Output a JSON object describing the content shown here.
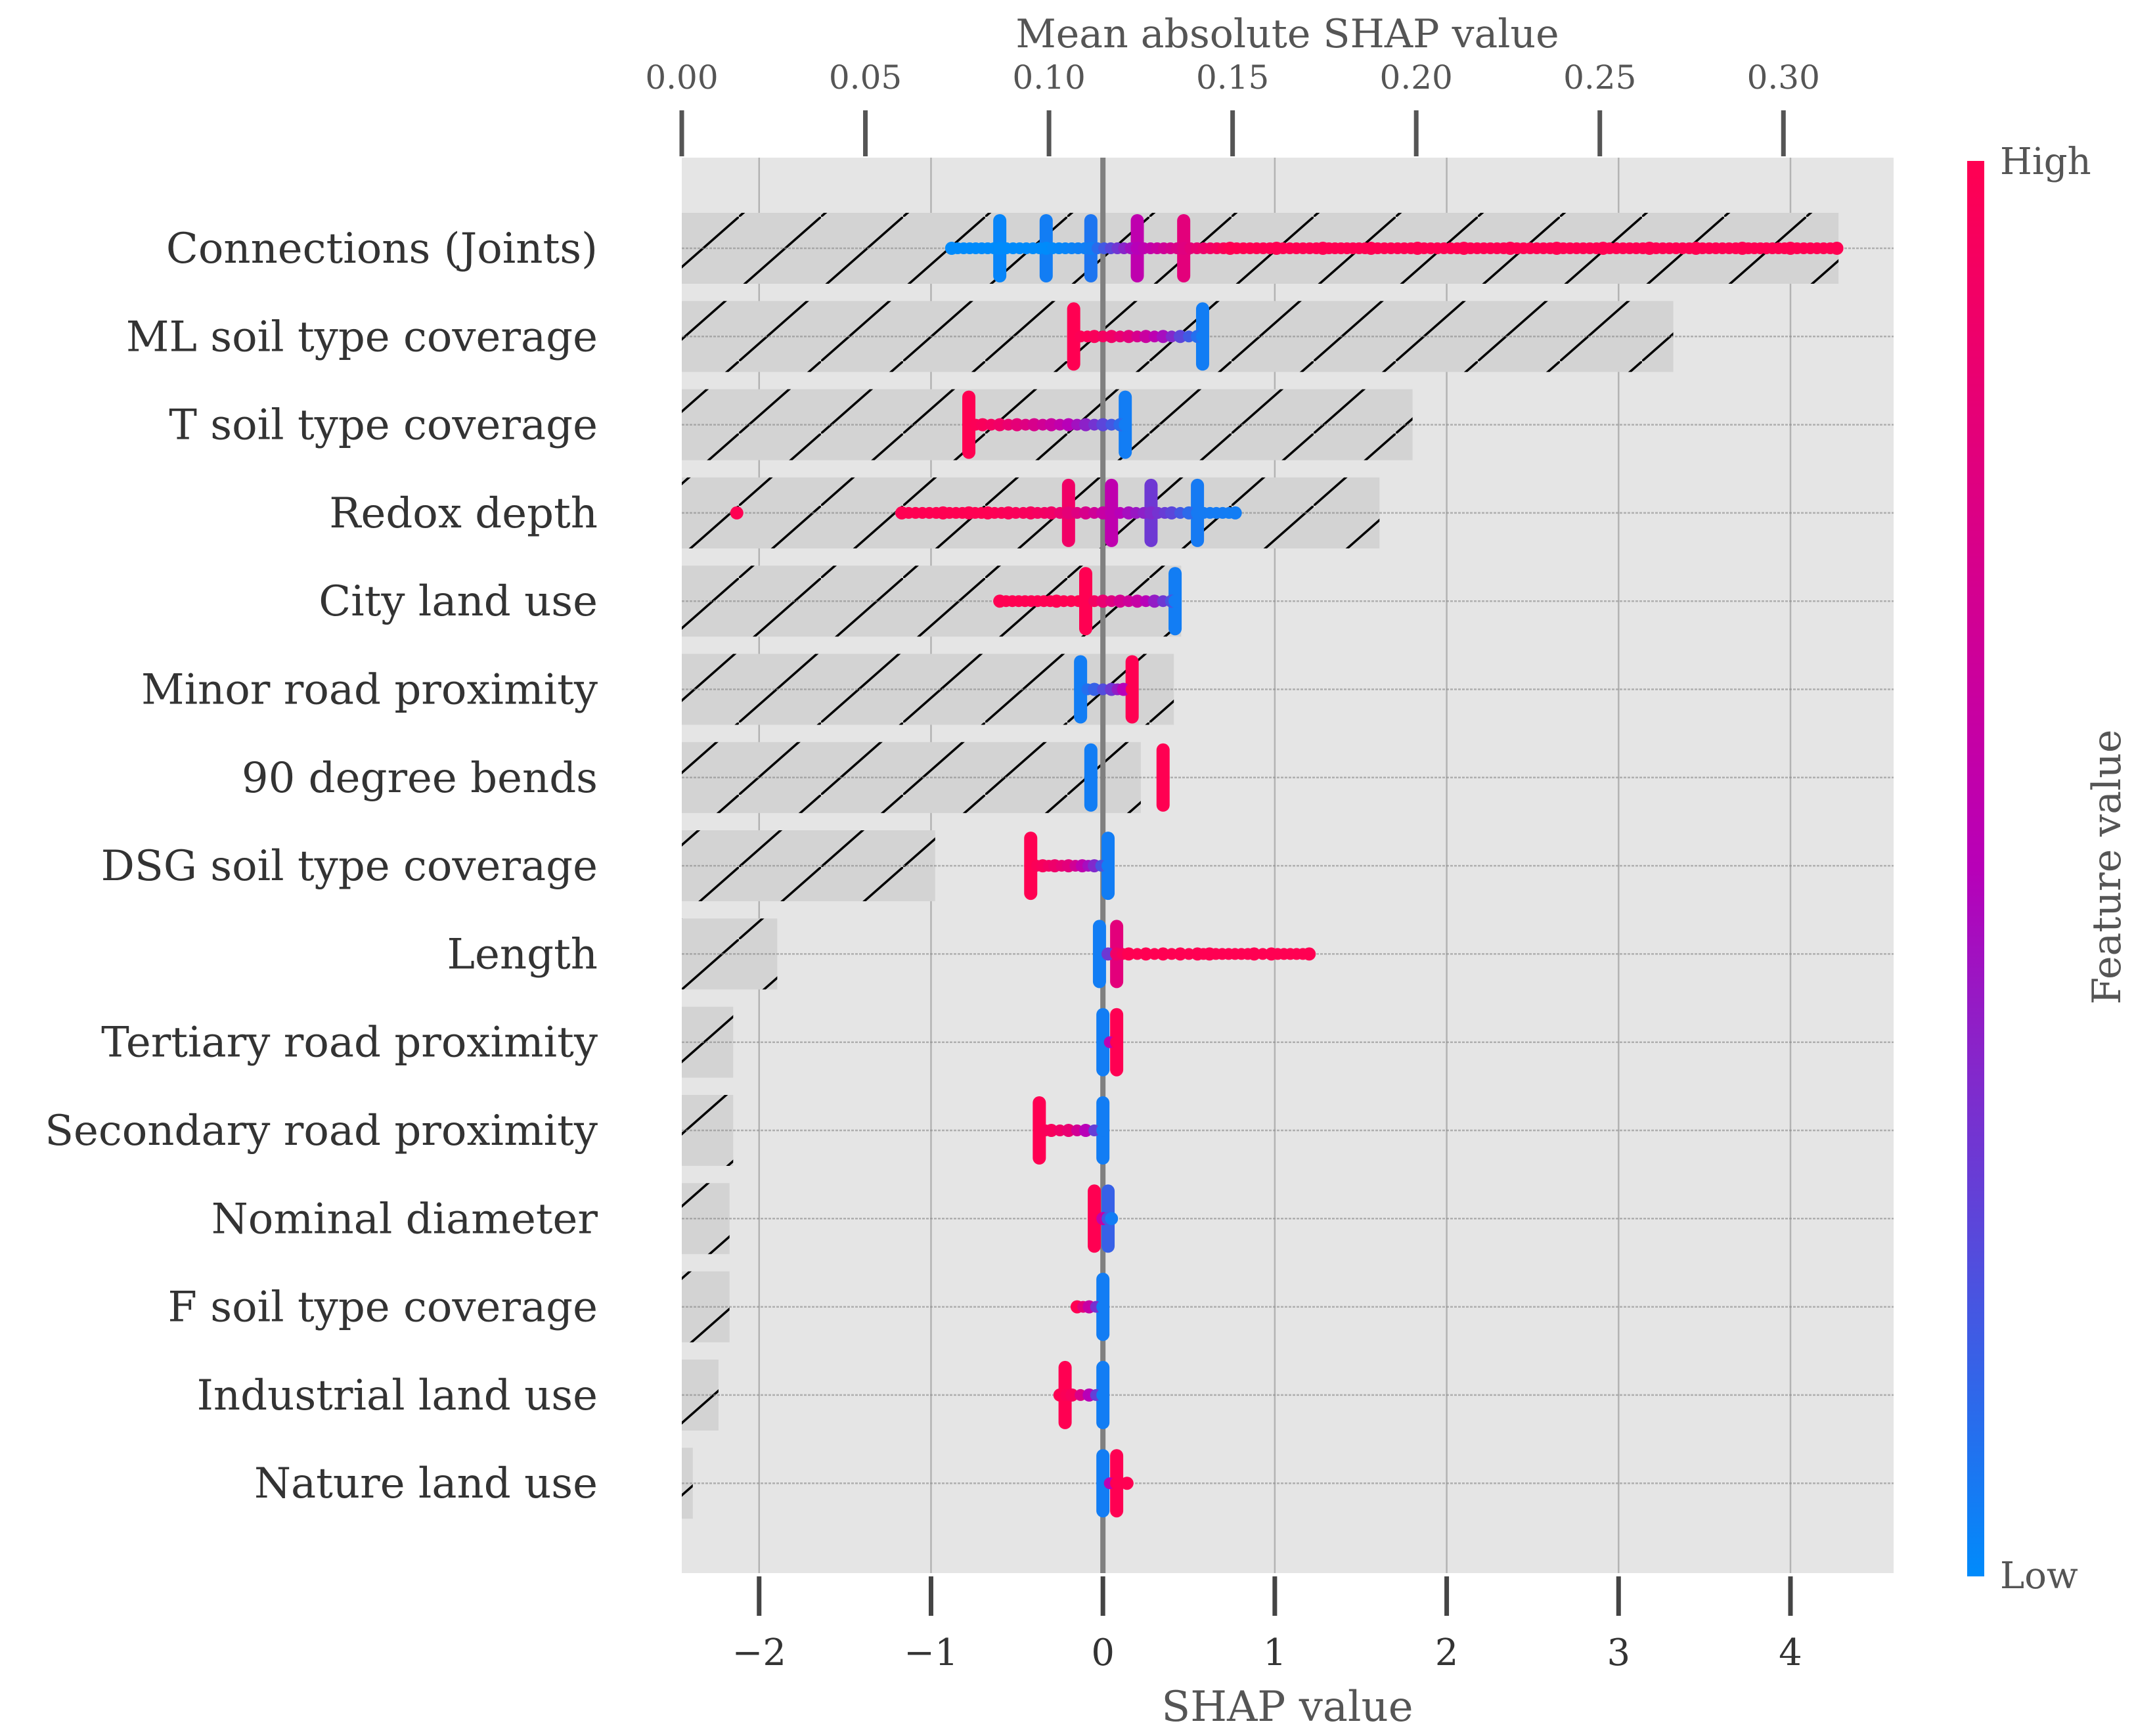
{
  "chart_data": {
    "type": "scatter",
    "title": "",
    "xlabel": "SHAP value",
    "xlim": [
      -2.45,
      4.6
    ],
    "xticks": [
      -2,
      -1,
      0,
      1,
      2,
      3,
      4
    ],
    "xtick_labels": [
      "−2",
      "−1",
      "0",
      "1",
      "2",
      "3",
      "4"
    ],
    "top_axis": {
      "label": "Mean absolute SHAP value",
      "xlim": [
        0,
        0.33
      ],
      "ticks": [
        0.0,
        0.05,
        0.1,
        0.15,
        0.2,
        0.25,
        0.3
      ],
      "tick_labels": [
        "0.00",
        "0.05",
        "0.10",
        "0.15",
        "0.20",
        "0.25",
        "0.30"
      ]
    },
    "colorbar": {
      "label": "Feature value",
      "high_label": "High",
      "low_label": "Low",
      "high_color": "#ff0052",
      "mid_color": "#b800b8",
      "low_color": "#008bfb"
    },
    "features": [
      {
        "name": "Connections (Joints)",
        "mean_abs_shap": 0.315,
        "points": [
          [
            -0.88,
            0
          ],
          [
            -0.6,
            0
          ],
          [
            -0.33,
            0
          ],
          [
            -0.07,
            0.05
          ],
          [
            0.2,
            0.5
          ],
          [
            0.47,
            0.78
          ],
          [
            0.74,
            1
          ],
          [
            1.01,
            1
          ],
          [
            1.28,
            1
          ],
          [
            1.56,
            1
          ],
          [
            1.83,
            1
          ],
          [
            2.1,
            1
          ],
          [
            2.37,
            1
          ],
          [
            2.64,
            1
          ],
          [
            2.91,
            1
          ],
          [
            3.18,
            1
          ],
          [
            3.45,
            1
          ],
          [
            3.72,
            1
          ],
          [
            4.0,
            1
          ],
          [
            4.27,
            1
          ]
        ],
        "clusters": [
          [
            -0.6,
            0.02
          ],
          [
            -0.33,
            0.05
          ],
          [
            -0.07,
            0.08
          ],
          [
            0.2,
            0.55
          ],
          [
            0.47,
            0.8
          ]
        ]
      },
      {
        "name": "ML soil type coverage",
        "mean_abs_shap": 0.27,
        "points": [
          [
            -0.17,
            1
          ],
          [
            -0.05,
            0.96
          ],
          [
            0.05,
            0.9
          ],
          [
            0.15,
            0.8
          ],
          [
            0.25,
            0.62
          ],
          [
            0.35,
            0.45
          ],
          [
            0.45,
            0.25
          ],
          [
            0.55,
            0.1
          ],
          [
            0.58,
            0.05
          ]
        ],
        "clusters": [
          [
            -0.17,
            1
          ],
          [
            0.58,
            0.05
          ]
        ]
      },
      {
        "name": "T soil type coverage",
        "mean_abs_shap": 0.199,
        "points": [
          [
            -0.78,
            1
          ],
          [
            -0.7,
            0.96
          ],
          [
            -0.6,
            0.9
          ],
          [
            -0.5,
            0.82
          ],
          [
            -0.4,
            0.72
          ],
          [
            -0.3,
            0.62
          ],
          [
            -0.2,
            0.5
          ],
          [
            -0.1,
            0.38
          ],
          [
            0.0,
            0.25
          ],
          [
            0.1,
            0.12
          ],
          [
            0.13,
            0.05
          ]
        ],
        "clusters": [
          [
            -0.78,
            1
          ],
          [
            0.13,
            0.05
          ]
        ]
      },
      {
        "name": "Redox depth",
        "mean_abs_shap": 0.19,
        "points": [
          [
            -2.13,
            1
          ],
          [
            -1.17,
            1
          ],
          [
            -0.93,
            1
          ],
          [
            -0.78,
            1
          ],
          [
            -0.67,
            1
          ],
          [
            -0.55,
            0.97
          ],
          [
            -0.42,
            0.95
          ],
          [
            -0.3,
            0.9
          ],
          [
            -0.2,
            0.82
          ],
          [
            -0.1,
            0.72
          ],
          [
            0.0,
            0.6
          ],
          [
            0.05,
            0.55
          ],
          [
            0.15,
            0.45
          ],
          [
            0.28,
            0.35
          ],
          [
            0.4,
            0.25
          ],
          [
            0.5,
            0.12
          ],
          [
            0.55,
            0.06
          ],
          [
            0.77,
            0.05
          ]
        ],
        "clusters": [
          [
            -0.2,
            0.9
          ],
          [
            0.05,
            0.55
          ],
          [
            0.28,
            0.3
          ],
          [
            0.55,
            0.06
          ]
        ]
      },
      {
        "name": "City land use",
        "mean_abs_shap": 0.136,
        "points": [
          [
            -0.6,
            1
          ],
          [
            -0.27,
            1
          ],
          [
            -0.1,
            1
          ],
          [
            0.0,
            0.85
          ],
          [
            0.1,
            0.7
          ],
          [
            0.2,
            0.6
          ],
          [
            0.3,
            0.4
          ],
          [
            0.4,
            0.2
          ],
          [
            0.42,
            0.05
          ]
        ],
        "clusters": [
          [
            -0.1,
            1
          ],
          [
            0.42,
            0.05
          ]
        ]
      },
      {
        "name": "Minor road proximity",
        "mean_abs_shap": 0.134,
        "points": [
          [
            -0.13,
            0.05
          ],
          [
            -0.05,
            0.15
          ],
          [
            0.05,
            0.3
          ],
          [
            0.12,
            0.5
          ],
          [
            0.17,
            1
          ]
        ],
        "clusters": [
          [
            -0.13,
            0.05
          ],
          [
            0.17,
            1
          ]
        ]
      },
      {
        "name": "90 degree bends",
        "mean_abs_shap": 0.125,
        "points": [
          [
            -0.07,
            0.05
          ],
          [
            0.35,
            1
          ]
        ],
        "clusters": [
          [
            -0.07,
            0.05
          ],
          [
            0.35,
            1
          ]
        ]
      },
      {
        "name": "DSG soil type coverage",
        "mean_abs_shap": 0.069,
        "points": [
          [
            -0.42,
            1
          ],
          [
            -0.35,
            0.95
          ],
          [
            -0.28,
            0.88
          ],
          [
            -0.2,
            0.8
          ],
          [
            -0.12,
            0.55
          ],
          [
            -0.05,
            0.35
          ],
          [
            0.03,
            0.05
          ]
        ],
        "clusters": [
          [
            -0.42,
            1
          ],
          [
            0.03,
            0.05
          ]
        ]
      },
      {
        "name": "Length",
        "mean_abs_shap": 0.026,
        "points": [
          [
            -0.02,
            0.05
          ],
          [
            0.03,
            0.3
          ],
          [
            0.08,
            0.9
          ],
          [
            0.15,
            1
          ],
          [
            0.25,
            1
          ],
          [
            0.35,
            1
          ],
          [
            0.45,
            1
          ],
          [
            0.55,
            1
          ],
          [
            0.62,
            1
          ],
          [
            0.88,
            1
          ],
          [
            0.98,
            1
          ],
          [
            1.2,
            1
          ]
        ],
        "clusters": [
          [
            -0.02,
            0.05
          ],
          [
            0.08,
            0.8
          ]
        ]
      },
      {
        "name": "Tertiary road proximity",
        "mean_abs_shap": 0.014,
        "points": [
          [
            0.0,
            0.05
          ],
          [
            0.08,
            1
          ]
        ],
        "clusters": [
          [
            0.0,
            0.05
          ],
          [
            0.08,
            1
          ]
        ]
      },
      {
        "name": "Secondary road proximity",
        "mean_abs_shap": 0.014,
        "points": [
          [
            -0.37,
            1
          ],
          [
            -0.3,
            0.95
          ],
          [
            -0.2,
            0.85
          ],
          [
            -0.1,
            0.5
          ],
          [
            0.0,
            0.05
          ]
        ],
        "clusters": [
          [
            -0.37,
            1
          ],
          [
            0.0,
            0.05
          ]
        ]
      },
      {
        "name": "Nominal diameter",
        "mean_abs_shap": 0.013,
        "points": [
          [
            -0.05,
            1
          ],
          [
            0.0,
            0.6
          ],
          [
            0.03,
            0.2
          ],
          [
            0.05,
            0.05
          ]
        ],
        "clusters": [
          [
            -0.05,
            1
          ],
          [
            0.03,
            0.15
          ]
        ]
      },
      {
        "name": "F soil type coverage",
        "mean_abs_shap": 0.013,
        "points": [
          [
            -0.15,
            1
          ],
          [
            -0.08,
            0.6
          ],
          [
            0.0,
            0.05
          ]
        ],
        "clusters": [
          [
            0.0,
            0.05
          ]
        ]
      },
      {
        "name": "Industrial land use",
        "mean_abs_shap": 0.01,
        "points": [
          [
            -0.25,
            1
          ],
          [
            -0.18,
            0.95
          ],
          [
            -0.08,
            0.5
          ],
          [
            0.0,
            0.05
          ]
        ],
        "clusters": [
          [
            -0.22,
            1
          ],
          [
            0.0,
            0.05
          ]
        ]
      },
      {
        "name": "Nature land use",
        "mean_abs_shap": 0.003,
        "points": [
          [
            0.0,
            0.05
          ],
          [
            0.08,
            1
          ],
          [
            0.14,
            1
          ]
        ],
        "clusters": [
          [
            0.0,
            0.05
          ],
          [
            0.08,
            1
          ]
        ]
      }
    ]
  }
}
